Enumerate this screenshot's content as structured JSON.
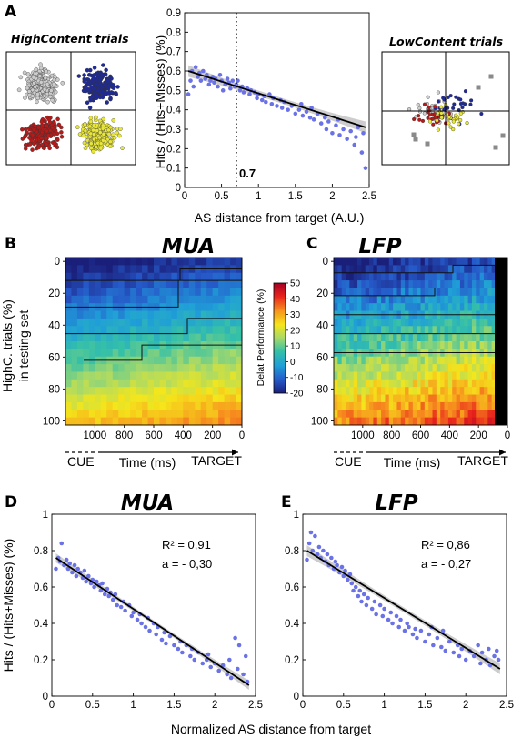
{
  "panels": {
    "A": {
      "label": "A",
      "left_title": "HighContent trials",
      "right_title": "LowContent trials",
      "xlabel": "AS distance from target (A.U.)",
      "ylabel": "Hits / (Hits+Misses) (%)",
      "threshold_label": "0.7",
      "threshold_x": 0.7
    },
    "B": {
      "label": "B",
      "title": "MUA"
    },
    "C": {
      "label": "C",
      "title": "LFP"
    },
    "heatmap": {
      "ylabel_line1": "HighC. trials (%)",
      "ylabel_line2": "in testing set",
      "colorbar_label": "Delat Performance (%)",
      "colorbar_ticks": [
        50,
        40,
        30,
        20,
        10,
        0,
        -10,
        -20
      ],
      "time_label": "Time (ms)",
      "cue_label": "CUE",
      "target_label": "TARGET"
    },
    "D": {
      "label": "D",
      "title": "MUA",
      "r2": "R² = 0,91",
      "slope": "a  = - 0,30"
    },
    "E": {
      "label": "E",
      "title": "LFP",
      "r2": "R² = 0,86",
      "slope": "a  = - 0,27"
    },
    "bottom": {
      "xlabel": "Normalized AS distance from target",
      "ylabel": "Hits / (Hits+Misses) (%)"
    }
  },
  "colors": {
    "dots": "#6b72e6",
    "fit": "#000000",
    "ci": "#c8c8c8"
  },
  "chart_data": [
    {
      "type": "scatter",
      "panel": "A-main",
      "xlabel": "AS distance from target (A.U.)",
      "ylabel": "Hits / (Hits+Misses) (%)",
      "xlim": [
        0,
        2.5
      ],
      "ylim": [
        0,
        0.9
      ],
      "xticks": [
        0,
        0.5,
        1,
        1.5,
        2,
        2.5
      ],
      "xtick_labels": [
        "0",
        "0.5",
        "1",
        "1.5",
        "2",
        "2.5"
      ],
      "yticks": [
        0,
        0.1,
        0.2,
        0.3,
        0.4,
        0.5,
        0.6,
        0.7,
        0.8,
        0.9
      ],
      "ytick_labels": [
        "0",
        "0.1",
        "0.2",
        "0.3",
        "0.4",
        "0.5",
        "0.6",
        "0.7",
        "0.8",
        "0.9"
      ],
      "fit": {
        "x": [
          0.05,
          2.45
        ],
        "y": [
          0.6,
          0.31
        ]
      },
      "x": [
        0.05,
        0.08,
        0.1,
        0.12,
        0.15,
        0.18,
        0.2,
        0.22,
        0.25,
        0.28,
        0.3,
        0.33,
        0.35,
        0.38,
        0.4,
        0.42,
        0.45,
        0.48,
        0.5,
        0.52,
        0.55,
        0.58,
        0.6,
        0.62,
        0.65,
        0.68,
        0.7,
        0.72,
        0.75,
        0.78,
        0.8,
        0.85,
        0.88,
        0.9,
        0.95,
        0.98,
        1.0,
        1.05,
        1.08,
        1.1,
        1.15,
        1.18,
        1.2,
        1.25,
        1.3,
        1.32,
        1.35,
        1.4,
        1.45,
        1.5,
        1.55,
        1.58,
        1.6,
        1.65,
        1.7,
        1.72,
        1.75,
        1.8,
        1.85,
        1.9,
        1.92,
        1.95,
        2.0,
        2.05,
        2.08,
        2.1,
        2.15,
        2.2,
        2.25,
        2.3,
        2.32,
        2.35,
        2.4,
        2.42,
        2.45
      ],
      "y": [
        0.48,
        0.55,
        0.6,
        0.52,
        0.62,
        0.57,
        0.59,
        0.55,
        0.6,
        0.56,
        0.58,
        0.53,
        0.55,
        0.57,
        0.54,
        0.56,
        0.52,
        0.58,
        0.55,
        0.5,
        0.53,
        0.56,
        0.54,
        0.51,
        0.55,
        0.52,
        0.53,
        0.55,
        0.5,
        0.52,
        0.49,
        0.51,
        0.48,
        0.5,
        0.49,
        0.46,
        0.48,
        0.45,
        0.47,
        0.44,
        0.48,
        0.43,
        0.46,
        0.42,
        0.45,
        0.41,
        0.44,
        0.4,
        0.42,
        0.38,
        0.4,
        0.43,
        0.37,
        0.39,
        0.36,
        0.41,
        0.35,
        0.38,
        0.33,
        0.36,
        0.3,
        0.34,
        0.28,
        0.32,
        0.35,
        0.27,
        0.3,
        0.25,
        0.29,
        0.22,
        0.26,
        0.31,
        0.18,
        0.28,
        0.1
      ]
    },
    {
      "type": "scatter",
      "panel": "A-HighContent",
      "clusters": [
        {
          "name": "grey",
          "color": "#cccccc",
          "cx": -0.5,
          "cy": 0.5,
          "n": 200
        },
        {
          "name": "blue",
          "color": "#1f2a9a",
          "cx": 0.5,
          "cy": 0.5,
          "n": 200
        },
        {
          "name": "red",
          "color": "#b81a1a",
          "cx": -0.5,
          "cy": -0.5,
          "n": 200
        },
        {
          "name": "yellow",
          "color": "#e8e63a",
          "cx": 0.5,
          "cy": -0.5,
          "n": 200
        }
      ]
    },
    {
      "type": "scatter",
      "panel": "A-LowContent",
      "clusters": [
        {
          "name": "grey",
          "color": "#cccccc",
          "n": 30
        },
        {
          "name": "blue",
          "color": "#1f2a9a",
          "n": 30
        },
        {
          "name": "red",
          "color": "#b81a1a",
          "n": 30
        },
        {
          "name": "yellow",
          "color": "#e8e63a",
          "n": 30
        }
      ]
    },
    {
      "type": "heatmap",
      "panel": "B",
      "title": "MUA",
      "xlabel": "Time (ms)",
      "ylabel": "HighC. trials (%) in testing set",
      "xlim": [
        1200,
        0
      ],
      "ylim": [
        0,
        105
      ],
      "xticks": [
        1000,
        800,
        600,
        400,
        200,
        0
      ],
      "xtick_labels": [
        "1000",
        "800",
        "600",
        "400",
        "200",
        "0"
      ],
      "yticks": [
        0,
        20,
        40,
        60,
        80,
        100
      ],
      "ytick_labels": [
        "0",
        "20",
        "40",
        "60",
        "80",
        "100"
      ],
      "value_range": [
        -20,
        50
      ],
      "rows": 22
    },
    {
      "type": "heatmap",
      "panel": "C",
      "title": "LFP",
      "xlabel": "Time (ms)",
      "xlim": [
        1200,
        0
      ],
      "ylim": [
        0,
        105
      ],
      "xticks": [
        1000,
        800,
        600,
        400,
        200,
        0
      ],
      "xtick_labels": [
        "1000",
        "800",
        "600",
        "400",
        "200",
        "0"
      ],
      "yticks": [
        0,
        20,
        40,
        60,
        80,
        100
      ],
      "ytick_labels": [
        "0",
        "20",
        "40",
        "60",
        "80",
        "100"
      ],
      "value_range": [
        -20,
        50
      ],
      "rows": 22
    },
    {
      "type": "scatter",
      "panel": "D",
      "title": "MUA",
      "xlim": [
        0,
        2.5
      ],
      "ylim": [
        0,
        1
      ],
      "xticks": [
        0,
        0.5,
        1,
        1.5,
        2,
        2.5
      ],
      "xtick_labels": [
        "0",
        "0.5",
        "1",
        "1.5",
        "2",
        "2.5"
      ],
      "yticks": [
        0,
        0.2,
        0.4,
        0.6,
        0.8,
        1
      ],
      "ytick_labels": [
        "0",
        "0.2",
        "0.4",
        "0.6",
        "0.8",
        "1"
      ],
      "fit": {
        "x": [
          0.05,
          2.42
        ],
        "y": [
          0.76,
          0.06
        ]
      },
      "x": [
        0.05,
        0.08,
        0.1,
        0.12,
        0.15,
        0.18,
        0.2,
        0.22,
        0.25,
        0.28,
        0.3,
        0.32,
        0.35,
        0.38,
        0.4,
        0.42,
        0.45,
        0.48,
        0.5,
        0.52,
        0.55,
        0.58,
        0.6,
        0.62,
        0.65,
        0.68,
        0.7,
        0.72,
        0.75,
        0.78,
        0.8,
        0.85,
        0.88,
        0.9,
        0.95,
        0.98,
        1.0,
        1.05,
        1.08,
        1.1,
        1.15,
        1.18,
        1.2,
        1.25,
        1.28,
        1.3,
        1.35,
        1.38,
        1.4,
        1.45,
        1.5,
        1.55,
        1.58,
        1.6,
        1.65,
        1.7,
        1.72,
        1.75,
        1.8,
        1.85,
        1.9,
        1.92,
        1.95,
        2.0,
        2.05,
        2.1,
        2.15,
        2.18,
        2.2,
        2.25,
        2.28,
        2.3,
        2.35,
        2.38,
        2.4
      ],
      "y": [
        0.7,
        0.76,
        0.74,
        0.84,
        0.72,
        0.75,
        0.7,
        0.73,
        0.68,
        0.72,
        0.66,
        0.7,
        0.68,
        0.65,
        0.69,
        0.63,
        0.66,
        0.62,
        0.64,
        0.6,
        0.63,
        0.61,
        0.58,
        0.62,
        0.56,
        0.59,
        0.55,
        0.57,
        0.53,
        0.56,
        0.5,
        0.49,
        0.52,
        0.47,
        0.5,
        0.44,
        0.46,
        0.42,
        0.45,
        0.4,
        0.38,
        0.43,
        0.36,
        0.4,
        0.34,
        0.38,
        0.31,
        0.35,
        0.29,
        0.33,
        0.28,
        0.26,
        0.3,
        0.24,
        0.28,
        0.22,
        0.26,
        0.2,
        0.24,
        0.18,
        0.2,
        0.23,
        0.16,
        0.18,
        0.14,
        0.17,
        0.12,
        0.2,
        0.1,
        0.32,
        0.15,
        0.28,
        0.12,
        0.22,
        0.08
      ]
    },
    {
      "type": "scatter",
      "panel": "E",
      "title": "LFP",
      "xlim": [
        0,
        2.5
      ],
      "ylim": [
        0,
        1
      ],
      "xticks": [
        0,
        0.5,
        1,
        1.5,
        2,
        2.5
      ],
      "xtick_labels": [
        "0",
        "0.5",
        "1",
        "1.5",
        "2",
        "2.5"
      ],
      "yticks": [
        0,
        0.2,
        0.4,
        0.6,
        0.8,
        1
      ],
      "ytick_labels": [
        "0",
        "0.2",
        "0.4",
        "0.6",
        "0.8",
        "1"
      ],
      "fit": {
        "x": [
          0.05,
          2.42
        ],
        "y": [
          0.8,
          0.15
        ]
      },
      "x": [
        0.05,
        0.08,
        0.1,
        0.12,
        0.15,
        0.18,
        0.2,
        0.22,
        0.25,
        0.28,
        0.3,
        0.32,
        0.35,
        0.38,
        0.4,
        0.42,
        0.45,
        0.48,
        0.5,
        0.52,
        0.55,
        0.58,
        0.6,
        0.62,
        0.65,
        0.68,
        0.7,
        0.72,
        0.75,
        0.78,
        0.8,
        0.85,
        0.88,
        0.9,
        0.95,
        0.98,
        1.0,
        1.05,
        1.08,
        1.1,
        1.15,
        1.18,
        1.2,
        1.25,
        1.28,
        1.3,
        1.35,
        1.38,
        1.4,
        1.45,
        1.5,
        1.55,
        1.58,
        1.6,
        1.65,
        1.7,
        1.72,
        1.75,
        1.8,
        1.85,
        1.9,
        1.92,
        1.95,
        2.0,
        2.05,
        2.1,
        2.15,
        2.18,
        2.2,
        2.25,
        2.28,
        2.3,
        2.35,
        2.38,
        2.4
      ],
      "y": [
        0.75,
        0.84,
        0.9,
        0.8,
        0.88,
        0.78,
        0.82,
        0.76,
        0.8,
        0.74,
        0.78,
        0.72,
        0.76,
        0.7,
        0.74,
        0.72,
        0.68,
        0.71,
        0.66,
        0.69,
        0.64,
        0.67,
        0.62,
        0.58,
        0.6,
        0.55,
        0.58,
        0.52,
        0.56,
        0.5,
        0.54,
        0.48,
        0.52,
        0.45,
        0.5,
        0.44,
        0.48,
        0.42,
        0.46,
        0.4,
        0.44,
        0.38,
        0.42,
        0.36,
        0.4,
        0.38,
        0.34,
        0.37,
        0.32,
        0.36,
        0.3,
        0.34,
        0.38,
        0.28,
        0.32,
        0.27,
        0.36,
        0.25,
        0.3,
        0.24,
        0.28,
        0.22,
        0.26,
        0.2,
        0.25,
        0.22,
        0.28,
        0.18,
        0.24,
        0.2,
        0.26,
        0.17,
        0.22,
        0.25,
        0.2
      ]
    }
  ]
}
